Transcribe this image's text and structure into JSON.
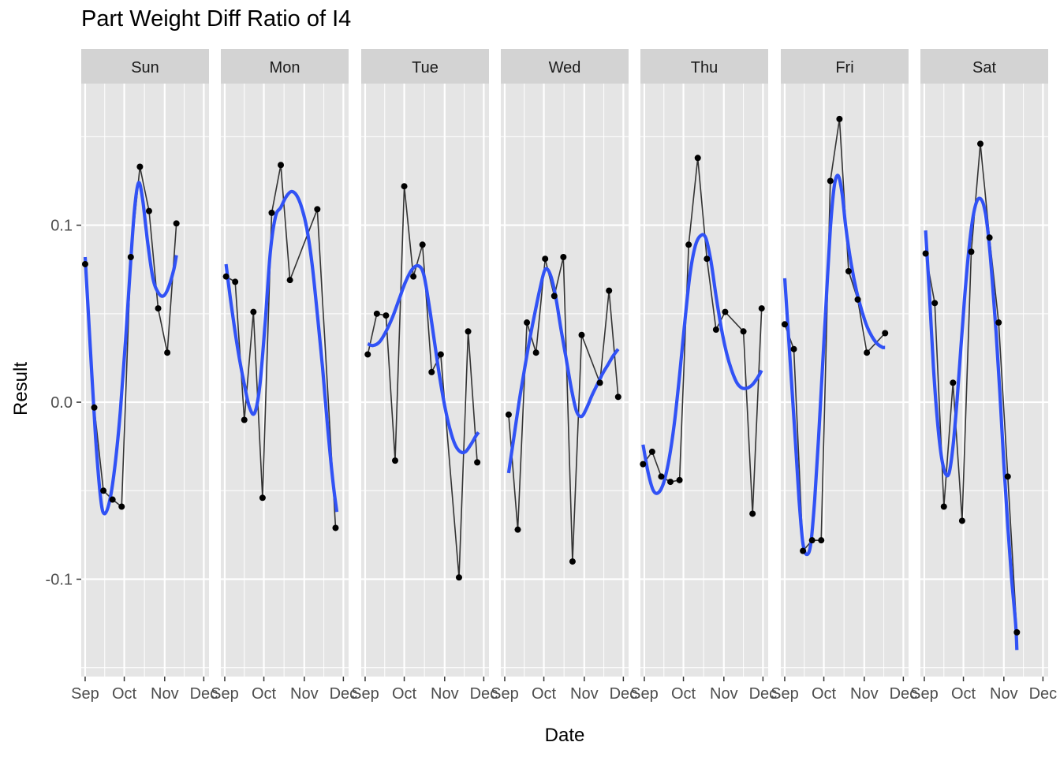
{
  "chart_data": {
    "type": "line",
    "title": "Part Weight Diff Ratio of I4",
    "xlabel": "Date",
    "ylabel": "Result",
    "ylim": [
      -0.155,
      0.18
    ],
    "xlim_days": [
      -3,
      95
    ],
    "x_ticks": [
      {
        "label": "Sep",
        "day": 0
      },
      {
        "label": "Oct",
        "day": 30
      },
      {
        "label": "Nov",
        "day": 61
      },
      {
        "label": "Dec",
        "day": 91
      }
    ],
    "y_ticks": [
      {
        "label": "-0.1",
        "value": -0.1
      },
      {
        "label": "0.0",
        "value": 0.0
      },
      {
        "label": "0.1",
        "value": 0.1
      }
    ],
    "grid": true,
    "colors": {
      "panel_bg": "#e5e5e5",
      "strip_bg": "#d3d3d3",
      "grid": "#ffffff",
      "line": "#333333",
      "point": "#000000",
      "smooth": "#3152f5"
    },
    "panels": [
      {
        "name": "Sun",
        "points": [
          [
            0,
            0.078
          ],
          [
            7,
            -0.003
          ],
          [
            14,
            -0.05
          ],
          [
            21,
            -0.055
          ],
          [
            28,
            -0.059
          ],
          [
            35,
            0.082
          ],
          [
            42,
            0.133
          ],
          [
            49,
            0.108
          ],
          [
            56,
            0.053
          ],
          [
            63,
            0.028
          ],
          [
            70,
            0.101
          ]
        ],
        "smooth": [
          [
            0,
            0.082
          ],
          [
            4,
            0.03
          ],
          [
            8,
            -0.02
          ],
          [
            12,
            -0.055
          ],
          [
            15,
            -0.063
          ],
          [
            19,
            -0.055
          ],
          [
            23,
            -0.035
          ],
          [
            27,
            -0.005
          ],
          [
            31,
            0.035
          ],
          [
            35,
            0.08
          ],
          [
            38,
            0.11
          ],
          [
            41,
            0.124
          ],
          [
            44,
            0.115
          ],
          [
            48,
            0.09
          ],
          [
            52,
            0.07
          ],
          [
            56,
            0.062
          ],
          [
            60,
            0.06
          ],
          [
            64,
            0.065
          ],
          [
            68,
            0.075
          ],
          [
            70,
            0.083
          ]
        ]
      },
      {
        "name": "Mon",
        "points": [
          [
            1,
            0.071
          ],
          [
            8,
            0.068
          ],
          [
            15,
            -0.01
          ],
          [
            22,
            0.051
          ],
          [
            29,
            -0.054
          ],
          [
            36,
            0.107
          ],
          [
            43,
            0.134
          ],
          [
            50,
            0.069
          ],
          [
            71,
            0.109
          ],
          [
            85,
            -0.071
          ]
        ],
        "smooth": [
          [
            1,
            0.078
          ],
          [
            5,
            0.055
          ],
          [
            10,
            0.03
          ],
          [
            15,
            0.01
          ],
          [
            19,
            -0.003
          ],
          [
            23,
            -0.006
          ],
          [
            27,
            0.01
          ],
          [
            31,
            0.045
          ],
          [
            35,
            0.085
          ],
          [
            39,
            0.105
          ],
          [
            43,
            0.11
          ],
          [
            47,
            0.116
          ],
          [
            51,
            0.119
          ],
          [
            55,
            0.117
          ],
          [
            59,
            0.11
          ],
          [
            63,
            0.098
          ],
          [
            67,
            0.078
          ],
          [
            71,
            0.05
          ],
          [
            75,
            0.02
          ],
          [
            79,
            -0.015
          ],
          [
            83,
            -0.045
          ],
          [
            86,
            -0.062
          ]
        ]
      },
      {
        "name": "Tue",
        "points": [
          [
            2,
            0.027
          ],
          [
            9,
            0.05
          ],
          [
            16,
            0.049
          ],
          [
            23,
            -0.033
          ],
          [
            30,
            0.122
          ],
          [
            37,
            0.071
          ],
          [
            44,
            0.089
          ],
          [
            51,
            0.017
          ],
          [
            58,
            0.027
          ],
          [
            72,
            -0.099
          ],
          [
            79,
            0.04
          ],
          [
            86,
            -0.034
          ]
        ],
        "smooth": [
          [
            2,
            0.033
          ],
          [
            6,
            0.032
          ],
          [
            11,
            0.034
          ],
          [
            16,
            0.04
          ],
          [
            21,
            0.048
          ],
          [
            26,
            0.058
          ],
          [
            31,
            0.068
          ],
          [
            36,
            0.075
          ],
          [
            41,
            0.077
          ],
          [
            45,
            0.072
          ],
          [
            49,
            0.055
          ],
          [
            53,
            0.035
          ],
          [
            57,
            0.015
          ],
          [
            61,
            -0.002
          ],
          [
            65,
            -0.015
          ],
          [
            69,
            -0.024
          ],
          [
            73,
            -0.028
          ],
          [
            77,
            -0.028
          ],
          [
            81,
            -0.024
          ],
          [
            85,
            -0.019
          ],
          [
            87,
            -0.017
          ]
        ]
      },
      {
        "name": "Wed",
        "points": [
          [
            3,
            -0.007
          ],
          [
            10,
            -0.072
          ],
          [
            17,
            0.045
          ],
          [
            24,
            0.028
          ],
          [
            31,
            0.081
          ],
          [
            38,
            0.06
          ],
          [
            45,
            0.082
          ],
          [
            52,
            -0.09
          ],
          [
            59,
            0.038
          ],
          [
            73,
            0.011
          ],
          [
            80,
            0.063
          ],
          [
            87,
            0.003
          ]
        ],
        "smooth": [
          [
            3,
            -0.04
          ],
          [
            7,
            -0.02
          ],
          [
            11,
            0.0
          ],
          [
            15,
            0.018
          ],
          [
            19,
            0.035
          ],
          [
            23,
            0.05
          ],
          [
            27,
            0.064
          ],
          [
            31,
            0.075
          ],
          [
            35,
            0.072
          ],
          [
            39,
            0.06
          ],
          [
            43,
            0.042
          ],
          [
            47,
            0.025
          ],
          [
            51,
            0.008
          ],
          [
            55,
            -0.005
          ],
          [
            59,
            -0.008
          ],
          [
            63,
            -0.003
          ],
          [
            67,
            0.004
          ],
          [
            71,
            0.01
          ],
          [
            75,
            0.016
          ],
          [
            79,
            0.021
          ],
          [
            83,
            0.026
          ],
          [
            87,
            0.03
          ]
        ]
      },
      {
        "name": "Thu",
        "points": [
          [
            -1,
            -0.035
          ],
          [
            6,
            -0.028
          ],
          [
            13,
            -0.042
          ],
          [
            20,
            -0.045
          ],
          [
            27,
            -0.044
          ],
          [
            34,
            0.089
          ],
          [
            41,
            0.138
          ],
          [
            48,
            0.081
          ],
          [
            55,
            0.041
          ],
          [
            62,
            0.051
          ],
          [
            76,
            0.04
          ],
          [
            83,
            -0.063
          ],
          [
            90,
            0.053
          ]
        ],
        "smooth": [
          [
            -1,
            -0.024
          ],
          [
            3,
            -0.04
          ],
          [
            7,
            -0.05
          ],
          [
            11,
            -0.051
          ],
          [
            15,
            -0.045
          ],
          [
            19,
            -0.032
          ],
          [
            23,
            -0.012
          ],
          [
            27,
            0.015
          ],
          [
            31,
            0.045
          ],
          [
            35,
            0.072
          ],
          [
            39,
            0.088
          ],
          [
            43,
            0.094
          ],
          [
            47,
            0.093
          ],
          [
            51,
            0.08
          ],
          [
            55,
            0.06
          ],
          [
            59,
            0.042
          ],
          [
            63,
            0.028
          ],
          [
            67,
            0.018
          ],
          [
            71,
            0.011
          ],
          [
            75,
            0.008
          ],
          [
            79,
            0.008
          ],
          [
            83,
            0.01
          ],
          [
            87,
            0.014
          ],
          [
            90,
            0.018
          ]
        ]
      },
      {
        "name": "Fri",
        "points": [
          [
            0,
            0.044
          ],
          [
            7,
            0.03
          ],
          [
            14,
            -0.084
          ],
          [
            21,
            -0.078
          ],
          [
            28,
            -0.078
          ],
          [
            35,
            0.125
          ],
          [
            42,
            0.16
          ],
          [
            49,
            0.074
          ],
          [
            56,
            0.058
          ],
          [
            63,
            0.028
          ],
          [
            77,
            0.039
          ]
        ],
        "smooth": [
          [
            0,
            0.07
          ],
          [
            4,
            0.025
          ],
          [
            8,
            -0.02
          ],
          [
            11,
            -0.055
          ],
          [
            14,
            -0.08
          ],
          [
            17,
            -0.086
          ],
          [
            20,
            -0.08
          ],
          [
            23,
            -0.055
          ],
          [
            26,
            -0.02
          ],
          [
            29,
            0.02
          ],
          [
            32,
            0.06
          ],
          [
            35,
            0.098
          ],
          [
            38,
            0.122
          ],
          [
            41,
            0.128
          ],
          [
            44,
            0.118
          ],
          [
            47,
            0.098
          ],
          [
            51,
            0.078
          ],
          [
            55,
            0.063
          ],
          [
            59,
            0.052
          ],
          [
            63,
            0.043
          ],
          [
            67,
            0.037
          ],
          [
            71,
            0.033
          ],
          [
            75,
            0.031
          ],
          [
            77,
            0.031
          ]
        ]
      },
      {
        "name": "Sat",
        "points": [
          [
            1,
            0.084
          ],
          [
            8,
            0.056
          ],
          [
            15,
            -0.059
          ],
          [
            22,
            0.011
          ],
          [
            29,
            -0.067
          ],
          [
            36,
            0.085
          ],
          [
            43,
            0.146
          ],
          [
            50,
            0.093
          ],
          [
            57,
            0.045
          ],
          [
            64,
            -0.042
          ],
          [
            71,
            -0.13
          ]
        ],
        "smooth": [
          [
            1,
            0.097
          ],
          [
            4,
            0.06
          ],
          [
            7,
            0.02
          ],
          [
            10,
            -0.01
          ],
          [
            13,
            -0.03
          ],
          [
            16,
            -0.04
          ],
          [
            19,
            -0.04
          ],
          [
            22,
            -0.025
          ],
          [
            25,
            0.0
          ],
          [
            28,
            0.03
          ],
          [
            31,
            0.06
          ],
          [
            34,
            0.085
          ],
          [
            37,
            0.103
          ],
          [
            40,
            0.113
          ],
          [
            43,
            0.115
          ],
          [
            46,
            0.11
          ],
          [
            49,
            0.095
          ],
          [
            52,
            0.07
          ],
          [
            55,
            0.04
          ],
          [
            58,
            0.005
          ],
          [
            61,
            -0.035
          ],
          [
            64,
            -0.07
          ],
          [
            67,
            -0.1
          ],
          [
            70,
            -0.125
          ],
          [
            71,
            -0.14
          ]
        ]
      }
    ]
  }
}
